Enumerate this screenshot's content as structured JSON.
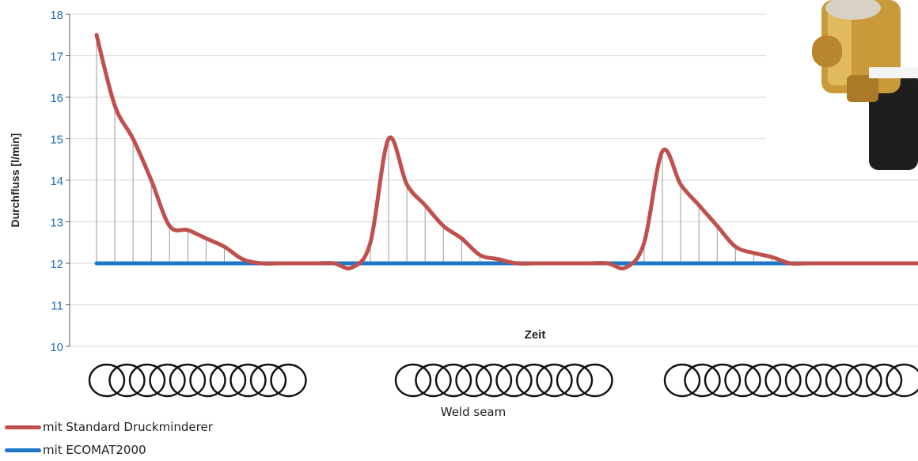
{
  "chart_data": {
    "type": "line",
    "ylabel": "Durchfluss [l/min]",
    "xlabel": "Zeit",
    "ylim": [
      10,
      18
    ],
    "yticks": [
      "10",
      "11",
      "12",
      "13",
      "14",
      "15",
      "16",
      "17",
      "18"
    ],
    "grid": true,
    "x": [
      1,
      2,
      3,
      4,
      5,
      6,
      7,
      8,
      9,
      10,
      11,
      12,
      13,
      14,
      15,
      16,
      17,
      18,
      19,
      20,
      21,
      22,
      23,
      24,
      25,
      26,
      27,
      28,
      29,
      30,
      31,
      32,
      33,
      34,
      35,
      36,
      37,
      38,
      39,
      40,
      41,
      42,
      43,
      44,
      45,
      46
    ],
    "series": [
      {
        "name": "mit Standard Druckminderer",
        "color": "#c0504d",
        "values": [
          17.5,
          15.8,
          15.0,
          14.0,
          12.9,
          12.8,
          12.6,
          12.4,
          12.1,
          12.0,
          12.0,
          12.0,
          12.0,
          12.0,
          11.9,
          12.5,
          15.0,
          13.9,
          13.4,
          12.9,
          12.6,
          12.2,
          12.1,
          12.0,
          12.0,
          12.0,
          12.0,
          12.0,
          12.0,
          11.9,
          12.5,
          14.7,
          13.9,
          13.4,
          12.9,
          12.4,
          12.25,
          12.15,
          12.0,
          12.0,
          12.0,
          12.0,
          12.0,
          12.0,
          12.0,
          12.0
        ]
      },
      {
        "name": "mit ECOMAT2000",
        "color": "#1f77c8",
        "values": [
          12,
          12,
          12,
          12,
          12,
          12,
          12,
          12,
          12,
          12,
          12,
          12,
          12,
          12,
          12,
          12,
          12,
          12,
          12,
          12,
          12,
          12,
          12,
          12,
          12,
          12,
          12,
          12,
          12,
          12,
          12,
          12,
          12,
          12,
          12,
          12,
          12,
          12,
          12,
          12,
          12,
          12,
          12,
          12,
          12,
          12
        ]
      }
    ],
    "weld_groups": [
      10,
      10,
      12
    ],
    "weld_label": "Weld seam",
    "legend_position": "bottom-left"
  },
  "product_image": "regulator-photo"
}
